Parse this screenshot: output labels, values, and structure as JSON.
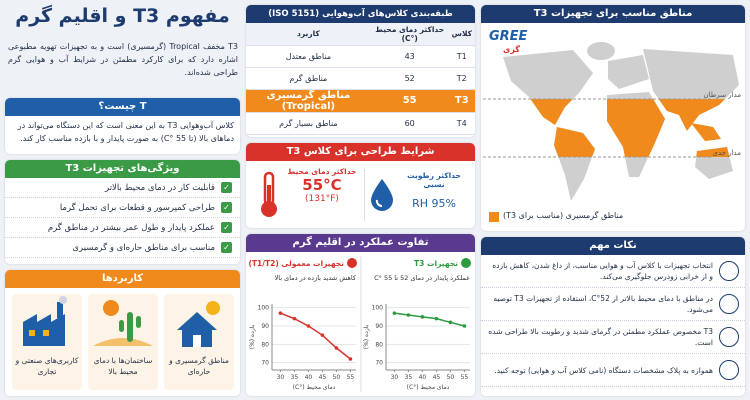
{
  "header": {
    "title": "مفهوم T3 و اقلیم گرم"
  },
  "intro": "T3 مخفف Tropical (گرمسیری) است و به تجهیزات تهویه مطبوعی اشاره دارد که برای کارکرد مطمئن در شرایط آب و هوایی گرم طراحی شده‌اند.",
  "what_is": {
    "title": "T چیست؟",
    "text": "کلاس آب‌وهوایی T3 به این معنی است که این دستگاه می‌تواند در دماهای بالا (تا 55 °C) به صورت پایدار و با بازده مناسب کار کند."
  },
  "features": {
    "title": "ویژگی‌های تجهیزات T3",
    "items": [
      "قابلیت کار در دمای محیط بالاتر",
      "طراحی کمپرسور و قطعات برای تحمل گرما",
      "عملکرد پایدار و طول عمر بیشتر در مناطق گرم",
      "مناسب برای مناطق حاره‌ای و گرمسیری"
    ]
  },
  "applications": {
    "title": "کاربردها",
    "items": [
      "مناطق گرمسیری و حاره‌ای",
      "ساختمان‌ها با دمای محیط بالا",
      "کاربری‌های صنعتی و تجاری"
    ]
  },
  "table": {
    "title": "طبقه‌بندی کلاس‌های آب‌وهوایی (ISO 5151)",
    "columns": [
      "کلاس",
      "حداکثر دمای محیط (°C)",
      "کاربرد"
    ],
    "rows": [
      [
        "T1",
        43,
        "مناطق معتدل"
      ],
      [
        "T2",
        52,
        "مناطق گرم"
      ],
      [
        "T3",
        55,
        "مناطق گرمسیری (Tropical)"
      ],
      [
        "T4",
        60,
        "مناطق بسیار گرم"
      ]
    ]
  },
  "design": {
    "title": "شرایط طراحی برای کلاس T3",
    "temp": {
      "label": "حداکثر دمای محیط",
      "value": "55°C",
      "sub": "(131°F)"
    },
    "humidity": {
      "label": "حداکثر رطوبت نسبی",
      "value": "RH 95%"
    }
  },
  "performance": {
    "title": "تفاوت عملکرد در اقلیم گرم",
    "charts": [
      {
        "type": "line",
        "title": "تجهیزات T3",
        "subtitle": "عملکرد پایدار در دمای 52 تا 55 °C",
        "color": "#2e9a3e",
        "x": [
          30,
          35,
          40,
          45,
          50,
          55
        ],
        "values": [
          97,
          96,
          95,
          94,
          92,
          90
        ],
        "xlim": [
          27,
          57
        ],
        "ylim": [
          66,
          102
        ],
        "xticks": [
          30,
          35,
          40,
          45,
          50,
          55
        ],
        "yticks": [
          70,
          80,
          90,
          100
        ],
        "xlabel": "دمای محیط (°C)",
        "ylabel": "بازده (%)"
      },
      {
        "type": "line",
        "title": "تجهیزات معمولی (T1/T2)",
        "subtitle": "کاهش شدید بازده در دمای بالا",
        "color": "#d9322b",
        "x": [
          30,
          35,
          40,
          45,
          50,
          55
        ],
        "values": [
          97,
          94,
          90,
          85,
          78,
          72
        ],
        "xlim": [
          27,
          57
        ],
        "ylim": [
          66,
          102
        ],
        "xticks": [
          30,
          35,
          40,
          45,
          50,
          55
        ],
        "yticks": [
          70,
          80,
          90,
          100
        ],
        "xlabel": "دمای محیط (°C)",
        "ylabel": "بازده (%)"
      }
    ]
  },
  "map": {
    "title": "مناطق مناسب برای تجهیزات T3",
    "brand": "GREE",
    "brand_fa": "گری",
    "tropic_cancer": "مدار سرطان",
    "tropic_capricorn": "مدار جدی",
    "legend": "مناطق گرمسیری (مناسب برای T3)"
  },
  "notes": {
    "title": "نکات مهم",
    "items": [
      "انتخاب تجهیزات با کلاس آب و هوایی مناسب، از داغ شدن، کاهش بازده و از خرابی زودرس جلوگیری می‌کند.",
      "در مناطق با دمای محیط بالاتر از 52°C، استفاده از تجهیزات T3 توصیه می‌شود.",
      "T3 مخصوص عملکرد مطمئن در گرمای شدید و رطوبت بالا طراحی شده است.",
      "همواره به پلاک مشخصات دستگاه (نامی کلاس آب و هوایی) توجه کنید."
    ]
  }
}
